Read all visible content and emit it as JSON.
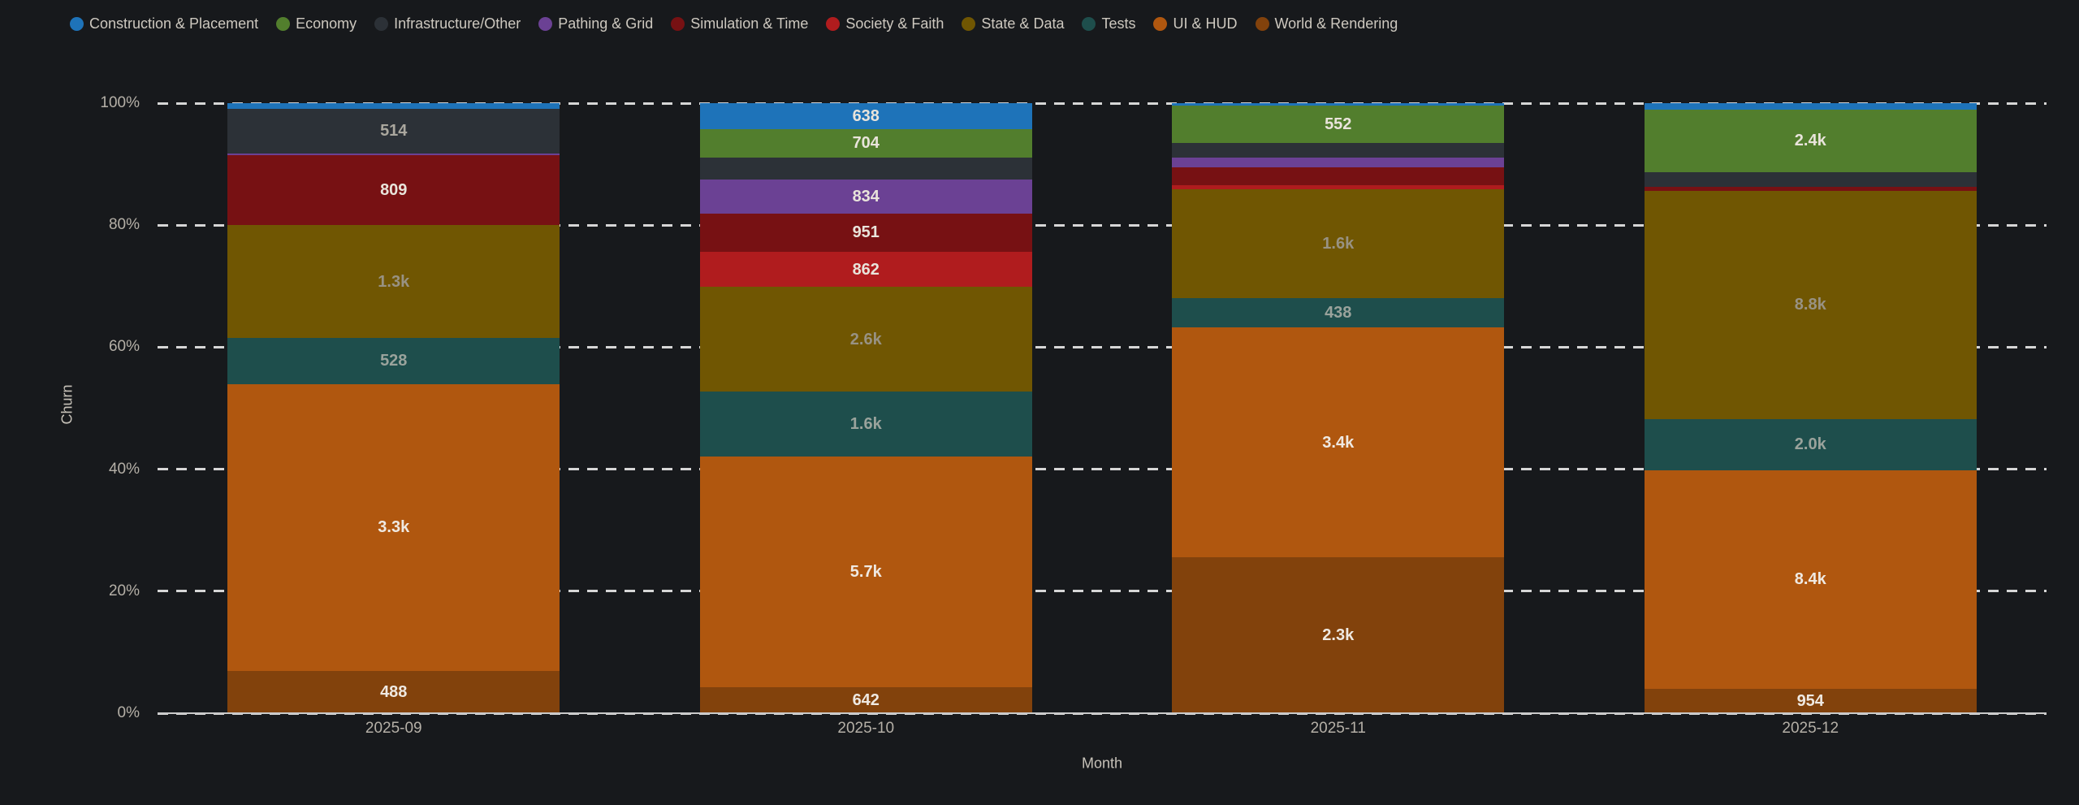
{
  "colors": {
    "background": "#17191c",
    "grid": "#d6d6d6",
    "axis_line": "#c9c9c9",
    "tick_text": "#b5b0a7",
    "axis_title_text": "#c6c1b8",
    "legend_text": "#cdc8bf"
  },
  "chart_data": {
    "type": "bar",
    "stacked": true,
    "percent": true,
    "title": "",
    "xlabel": "Month",
    "ylabel": "Churn",
    "ylim": [
      "0%",
      "100%"
    ],
    "grid": "dashed-horizontal",
    "legend_position": "top-left",
    "y_ticks": [
      "0%",
      "20%",
      "40%",
      "60%",
      "80%",
      "100%"
    ],
    "y_tick_percents": [
      0,
      20,
      40,
      60,
      80,
      100
    ],
    "categories": [
      "2025-09",
      "2025-10",
      "2025-11",
      "2025-12"
    ],
    "series": [
      {
        "name": "Construction & Placement",
        "color": "#1e73b9",
        "label_color": "#e9e4db",
        "values": [
          65,
          638,
          36,
          250
        ],
        "labels": [
          "",
          "638",
          "",
          ""
        ]
      },
      {
        "name": "Economy",
        "color": "#527e2d",
        "label_color": "#e9e4db",
        "values": [
          0,
          704,
          552,
          2400
        ],
        "labels": [
          "",
          "704",
          "552",
          "2.4k"
        ]
      },
      {
        "name": "Infrastructure/Other",
        "color": "#2c3137",
        "label_color": "#aaa79e",
        "values": [
          514,
          550,
          215,
          565
        ],
        "labels": [
          "514",
          "",
          "",
          ""
        ]
      },
      {
        "name": "Pathing & Grid",
        "color": "#6b4194",
        "label_color": "#e9e4db",
        "values": [
          15,
          834,
          143,
          0
        ],
        "labels": [
          "",
          "834",
          "",
          ""
        ]
      },
      {
        "name": "Simulation & Time",
        "color": "#771113",
        "label_color": "#e9e4db",
        "values": [
          809,
          951,
          262,
          156
        ],
        "labels": [
          "809",
          "951",
          "",
          ""
        ]
      },
      {
        "name": "Society & Faith",
        "color": "#b01c1e",
        "label_color": "#e9e4db",
        "values": [
          0,
          862,
          71,
          0
        ],
        "labels": [
          "",
          "862",
          "",
          ""
        ]
      },
      {
        "name": "State & Data",
        "color": "#705602",
        "label_color": "#989283",
        "values": [
          1300,
          2600,
          1600,
          8800
        ],
        "labels": [
          "1.3k",
          "2.6k",
          "1.6k",
          "8.8k"
        ]
      },
      {
        "name": "Tests",
        "color": "#1e4e4c",
        "label_color": "#9aa39c",
        "values": [
          528,
          1600,
          438,
          2000
        ],
        "labels": [
          "528",
          "1.6k",
          "438",
          "2.0k"
        ]
      },
      {
        "name": "UI & HUD",
        "color": "#b0570f",
        "label_color": "#efe9e2",
        "values": [
          3300,
          5700,
          3400,
          8400
        ],
        "labels": [
          "3.3k",
          "5.7k",
          "3.4k",
          "8.4k"
        ]
      },
      {
        "name": "World & Rendering",
        "color": "#82420c",
        "label_color": "#efe9e2",
        "values": [
          488,
          642,
          2300,
          954
        ],
        "labels": [
          "488",
          "642",
          "2.3k",
          "954"
        ]
      }
    ]
  }
}
